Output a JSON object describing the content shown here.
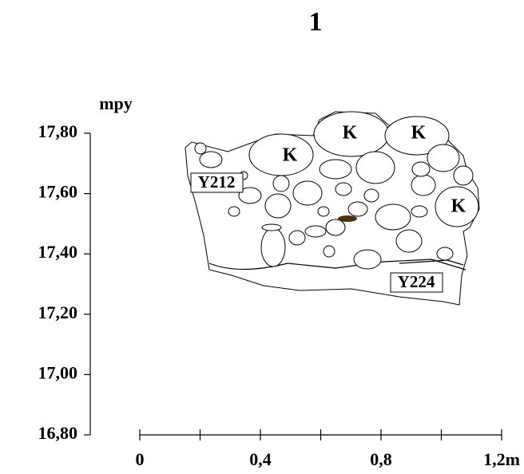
{
  "title": "1",
  "y_axis": {
    "label": "mpy",
    "ticks": [
      "17,80",
      "17,60",
      "17,40",
      "17,20",
      "17,00",
      "16,80"
    ]
  },
  "x_axis": {
    "ticks": [
      "0",
      "0,4",
      "0,8",
      "1,2m"
    ]
  },
  "labels": {
    "stones": [
      "K",
      "K",
      "K",
      "K"
    ],
    "contexts": [
      "Y212",
      "Y224"
    ]
  }
}
